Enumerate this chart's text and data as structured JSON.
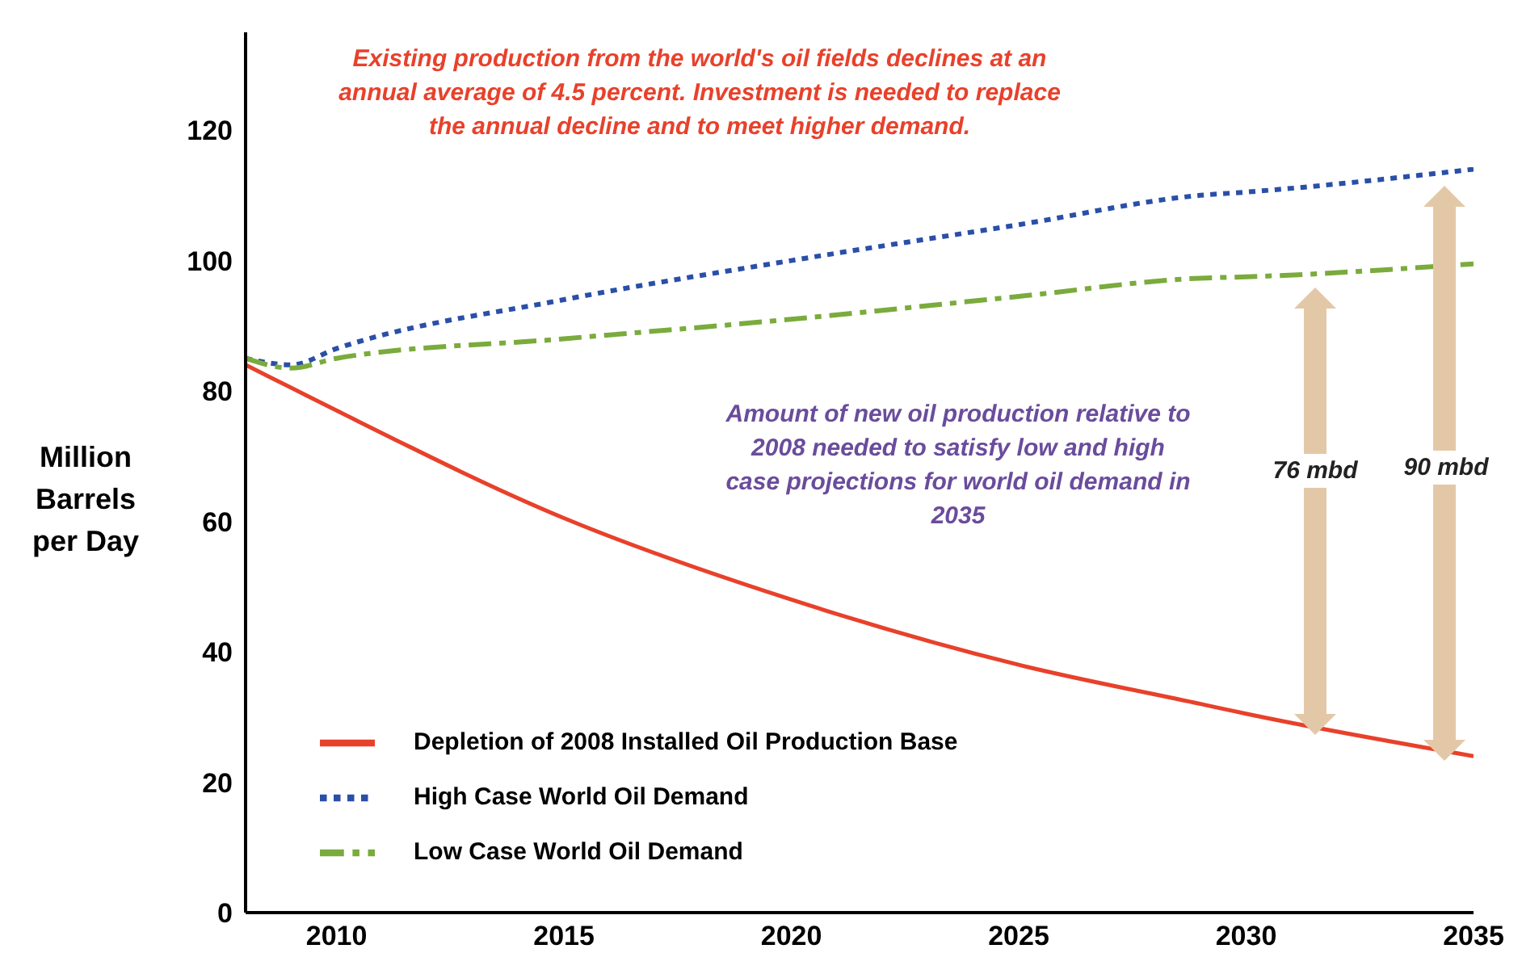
{
  "chart_data": {
    "type": "line",
    "ylabel": "Million Barrels per Day",
    "x": [
      2008,
      2009,
      2010,
      2015,
      2020,
      2025,
      2029,
      2030,
      2035
    ],
    "series": [
      {
        "name": "High Case World Oil Demand",
        "color": "#2a4fa8",
        "line_style": "dotted",
        "values": [
          85,
          84,
          86.5,
          94,
          100,
          105.5,
          110,
          110.5,
          114
        ]
      },
      {
        "name": "Low Case World Oil Demand",
        "color": "#7aab3c",
        "line_style": "dashed",
        "values": [
          85,
          83.5,
          85,
          88,
          91,
          94.5,
          97.3,
          97.5,
          99.5
        ]
      },
      {
        "name": "Depletion of 2008 Installed Oil Production Base",
        "color": "#e8412b",
        "line_style": "solid",
        "values": [
          84,
          80.5,
          77,
          60.5,
          48,
          38,
          32,
          30.5,
          24
        ]
      }
    ],
    "xlim": [
      2008,
      2035
    ],
    "xticks": [
      2010,
      2015,
      2020,
      2025,
      2030,
      2035
    ],
    "ylim": [
      0,
      135
    ],
    "yticks": [
      0,
      20,
      40,
      60,
      80,
      100,
      120
    ],
    "grid": false,
    "legend": "bottom left",
    "marker": "none",
    "annotations": [
      "Existing production from the world's oil fields declines at an annual average of 4.5 percent. Investment is needed to replace the annual decline and to meet higher demand.",
      "Amount of new oil production relative to 2008 needed to satisfy low and high case projections for world oil demand in 2035",
      "76 mbd",
      "90 mbd"
    ]
  }
}
